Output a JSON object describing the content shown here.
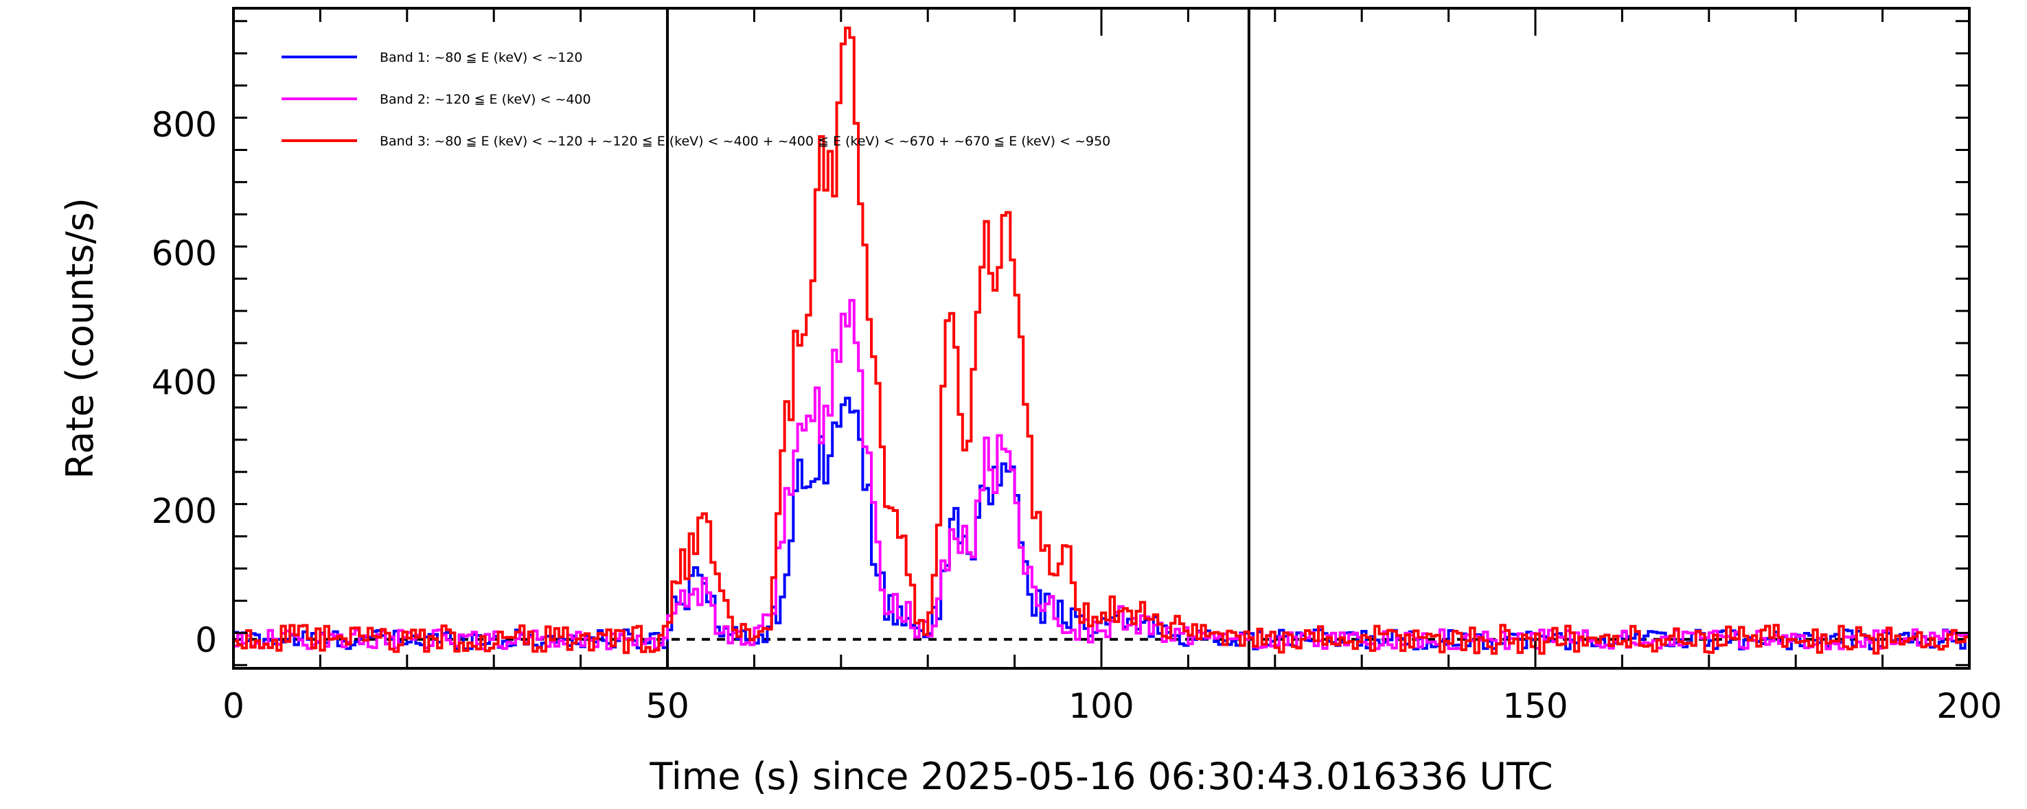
{
  "chart_data": {
    "type": "line",
    "step": true,
    "xlabel": "Time (s) since 2025-05-16 06:30:43.016336 UTC",
    "ylabel": "Rate (counts/s)",
    "xlim": [
      0,
      200
    ],
    "ylim": [
      -45,
      980
    ],
    "x_ticks": [
      0,
      50,
      100,
      150,
      200
    ],
    "y_ticks": [
      0,
      200,
      400,
      600,
      800
    ],
    "x_tick_labels": [
      "0",
      "50",
      "100",
      "150",
      "200"
    ],
    "y_tick_labels": [
      "0",
      "200",
      "400",
      "600",
      "800"
    ],
    "baseline": {
      "y": 0,
      "style": "dashed",
      "color": "#000000"
    },
    "vertical_lines": [
      50,
      117
    ],
    "legend": {
      "placement": "top-left"
    },
    "bin_width_s": 0.5,
    "series": [
      {
        "name": "Band 1: ~80 ≦ E (keV) < ~120",
        "color": "#0000ff",
        "x": [
          50,
          51,
          52,
          53,
          54,
          55,
          56,
          58,
          60,
          62,
          63,
          64,
          65,
          66,
          67,
          68,
          69,
          70,
          71,
          72,
          73,
          74,
          75,
          76,
          77,
          78,
          79,
          80,
          81,
          82,
          83,
          84,
          85,
          86,
          87,
          88,
          89,
          90,
          91,
          92,
          93,
          94,
          95,
          96,
          97,
          98,
          99,
          100,
          102,
          104,
          106,
          108,
          110,
          113,
          117
        ],
        "y": [
          10,
          65,
          70,
          95,
          110,
          80,
          10,
          5,
          3,
          20,
          60,
          140,
          230,
          265,
          300,
          280,
          320,
          340,
          350,
          300,
          250,
          120,
          60,
          40,
          45,
          30,
          20,
          10,
          35,
          95,
          180,
          160,
          115,
          190,
          240,
          250,
          280,
          225,
          140,
          70,
          45,
          60,
          50,
          40,
          25,
          15,
          10,
          20,
          30,
          25,
          20,
          10,
          5,
          0,
          0
        ]
      },
      {
        "name": "Band 2: ~120 ≦ E (keV) < ~400",
        "color": "#ff00ff",
        "x": [
          50,
          51,
          52,
          53,
          54,
          55,
          56,
          58,
          60,
          62,
          63,
          64,
          65,
          66,
          67,
          68,
          69,
          70,
          71,
          72,
          73,
          74,
          75,
          76,
          77,
          78,
          79,
          80,
          81,
          82,
          83,
          84,
          85,
          86,
          87,
          88,
          89,
          90,
          91,
          92,
          93,
          94,
          95,
          96,
          97,
          98,
          99,
          100,
          102,
          104,
          106,
          108,
          110,
          113,
          117
        ],
        "y": [
          15,
          55,
          60,
          75,
          80,
          60,
          15,
          5,
          3,
          30,
          150,
          250,
          320,
          310,
          380,
          300,
          400,
          420,
          560,
          430,
          290,
          140,
          70,
          60,
          50,
          35,
          15,
          10,
          45,
          110,
          150,
          160,
          130,
          230,
          280,
          260,
          310,
          245,
          150,
          80,
          50,
          45,
          40,
          30,
          20,
          15,
          10,
          20,
          30,
          25,
          15,
          10,
          5,
          0,
          0
        ]
      },
      {
        "name": "Band 3: ~80 ≦ E (keV) < ~120 + ~120 ≦ E (keV) < ~400 + ~400 ≦ E (keV) < ~670 + ~670 ≦ E (keV) < ~950",
        "color": "#ff0000",
        "x": [
          50,
          51,
          52,
          53,
          54,
          55,
          56,
          57,
          58,
          60,
          62,
          63,
          64,
          65,
          66,
          67,
          68,
          69,
          70,
          71,
          72,
          73,
          74,
          75,
          76,
          77,
          78,
          79,
          80,
          81,
          82,
          83,
          84,
          85,
          86,
          87,
          88,
          89,
          90,
          91,
          92,
          93,
          94,
          95,
          96,
          97,
          98,
          99,
          100,
          102,
          104,
          106,
          108,
          110,
          113,
          117
        ],
        "y": [
          10,
          100,
          120,
          150,
          200,
          130,
          90,
          20,
          10,
          5,
          40,
          220,
          360,
          470,
          540,
          640,
          740,
          720,
          830,
          930,
          750,
          560,
          440,
          260,
          170,
          150,
          70,
          40,
          20,
          110,
          540,
          460,
          270,
          330,
          560,
          610,
          570,
          660,
          510,
          400,
          230,
          140,
          110,
          90,
          130,
          80,
          40,
          20,
          30,
          50,
          40,
          30,
          20,
          15,
          10,
          0
        ]
      }
    ]
  }
}
